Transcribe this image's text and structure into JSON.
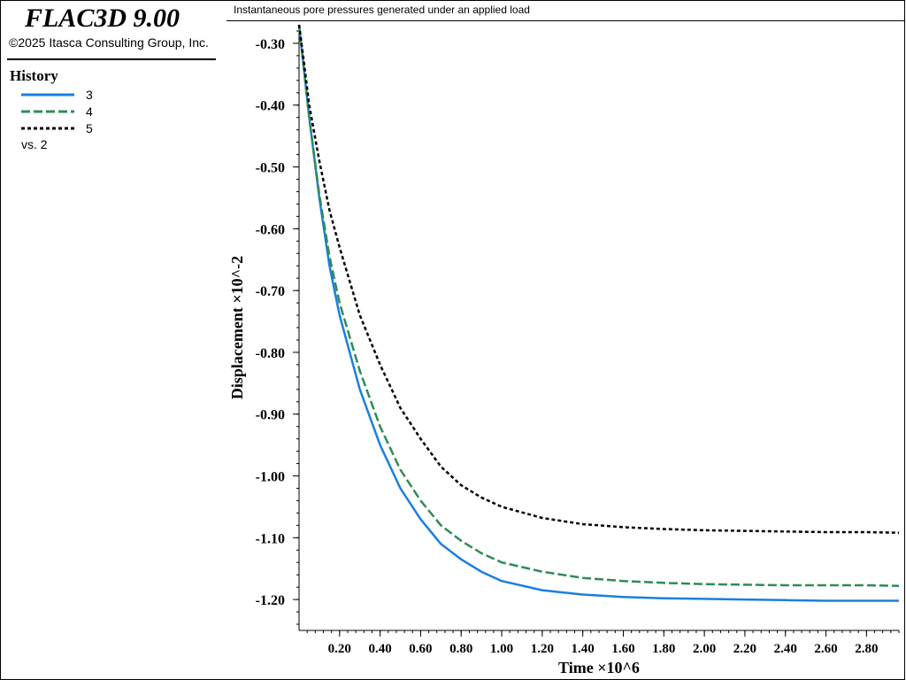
{
  "app": {
    "title": "FLAC3D 9.00",
    "copyright": "©2025 Itasca Consulting Group, Inc."
  },
  "legend": {
    "title": "History",
    "items": [
      {
        "label": "3",
        "color": "#1a7fe0",
        "dash": "solid"
      },
      {
        "label": "4",
        "color": "#2e8b57",
        "dash": "dashed"
      },
      {
        "label": "5",
        "color": "#000000",
        "dash": "dotted"
      }
    ],
    "vs_label": "vs. 2"
  },
  "chart_title": "Instantaneous pore pressures generated under an applied load",
  "chart_data": {
    "type": "line",
    "xlabel": "Time ×10^6",
    "ylabel": "Displacement ×10^-2",
    "xlim": [
      0,
      2.96
    ],
    "ylim": [
      -1.25,
      -0.27
    ],
    "x_ticks": [
      "0.20",
      "0.40",
      "0.60",
      "0.80",
      "1.00",
      "1.20",
      "1.40",
      "1.60",
      "1.80",
      "2.00",
      "2.20",
      "2.40",
      "2.60",
      "2.80"
    ],
    "y_ticks": [
      "-0.30",
      "-0.40",
      "-0.50",
      "-0.60",
      "-0.70",
      "-0.80",
      "-0.90",
      "-1.00",
      "-1.10",
      "-1.20"
    ],
    "x": [
      0.0,
      0.02,
      0.05,
      0.1,
      0.15,
      0.2,
      0.3,
      0.4,
      0.5,
      0.6,
      0.7,
      0.8,
      0.9,
      1.0,
      1.2,
      1.4,
      1.6,
      1.8,
      2.0,
      2.2,
      2.4,
      2.6,
      2.8,
      2.96
    ],
    "series": [
      {
        "name": "3",
        "color": "#1a7fe0",
        "dash": "solid",
        "values": [
          -0.27,
          -0.33,
          -0.42,
          -0.55,
          -0.66,
          -0.74,
          -0.86,
          -0.95,
          -1.02,
          -1.07,
          -1.11,
          -1.135,
          -1.155,
          -1.17,
          -1.185,
          -1.192,
          -1.196,
          -1.198,
          -1.199,
          -1.2,
          -1.201,
          -1.202,
          -1.202,
          -1.202
        ]
      },
      {
        "name": "4",
        "color": "#2e8b57",
        "dash": "dashed",
        "values": [
          -0.27,
          -0.33,
          -0.42,
          -0.545,
          -0.645,
          -0.72,
          -0.83,
          -0.92,
          -0.99,
          -1.04,
          -1.08,
          -1.105,
          -1.125,
          -1.14,
          -1.155,
          -1.165,
          -1.17,
          -1.173,
          -1.175,
          -1.176,
          -1.177,
          -1.177,
          -1.177,
          -1.178
        ]
      },
      {
        "name": "5",
        "color": "#000000",
        "dash": "dotted",
        "values": [
          -0.27,
          -0.32,
          -0.4,
          -0.49,
          -0.57,
          -0.63,
          -0.74,
          -0.82,
          -0.89,
          -0.94,
          -0.985,
          -1.015,
          -1.035,
          -1.05,
          -1.068,
          -1.078,
          -1.083,
          -1.086,
          -1.088,
          -1.089,
          -1.09,
          -1.091,
          -1.091,
          -1.092
        ]
      }
    ]
  }
}
